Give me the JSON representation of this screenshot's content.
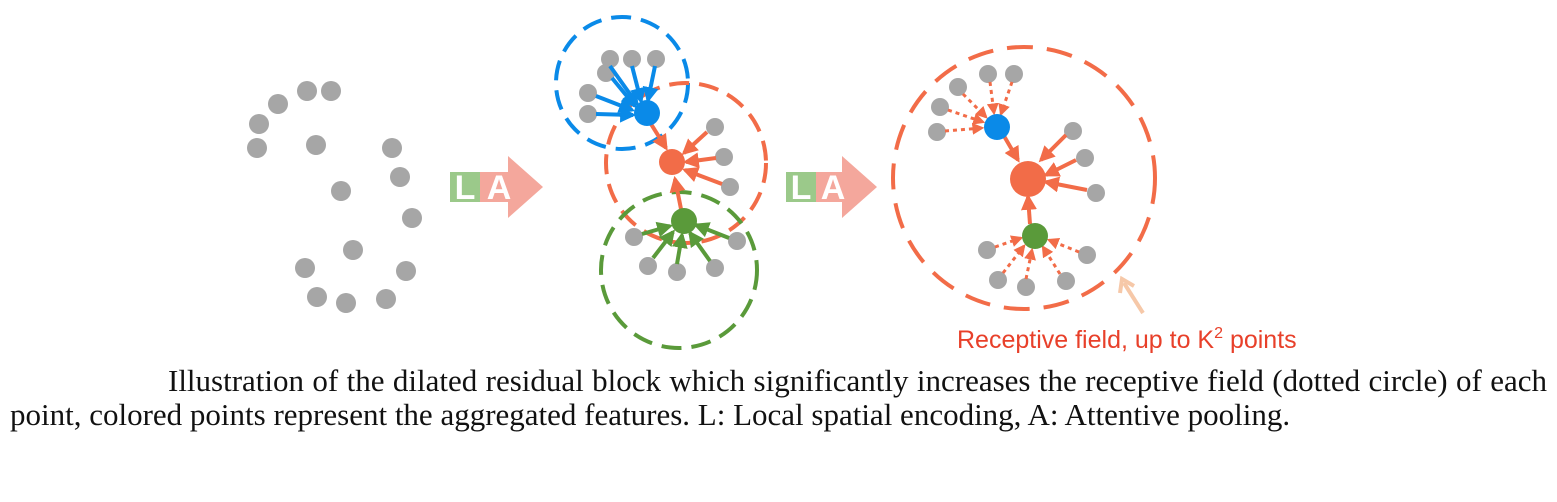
{
  "figure": {
    "operator_labels": {
      "local": "L",
      "attentive": "A"
    },
    "annotation": {
      "text": "Receptive field, up to K",
      "superscript": "2",
      "suffix": " points"
    },
    "colors": {
      "gray_point": "#a6a6a6",
      "blue": "#0a8ae8",
      "orange": "#f26c48",
      "green": "#5a9a3a",
      "la_green": "#9bc98a",
      "la_pink": "#f4a79c",
      "label_red": "#e8402a",
      "pointer": "#f6c8a8"
    }
  },
  "caption": {
    "text": "Illustration of the dilated residual block which significantly increases the receptive field (dotted circle) of each point, colored points represent the aggregated features. L: Local spatial encoding, A: Attentive pooling."
  }
}
